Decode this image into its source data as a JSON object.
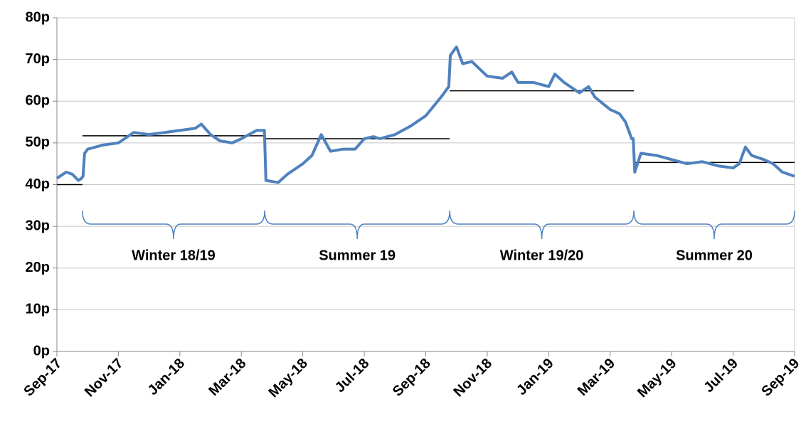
{
  "chart_data": {
    "type": "line",
    "xlim": [
      0,
      24
    ],
    "xticks": [
      {
        "value": 0,
        "label": "Sep-17"
      },
      {
        "value": 2,
        "label": "Nov-17"
      },
      {
        "value": 4,
        "label": "Jan-18"
      },
      {
        "value": 6,
        "label": "Mar-18"
      },
      {
        "value": 8,
        "label": "May-18"
      },
      {
        "value": 10,
        "label": "Jul-18"
      },
      {
        "value": 12,
        "label": "Sep-18"
      },
      {
        "value": 14,
        "label": "Nov-18"
      },
      {
        "value": 16,
        "label": "Jan-19"
      },
      {
        "value": 18,
        "label": "Mar-19"
      },
      {
        "value": 20,
        "label": "May-19"
      },
      {
        "value": 22,
        "label": "Jul-19"
      },
      {
        "value": 24,
        "label": "Sep-19"
      }
    ],
    "ylim": [
      0,
      80
    ],
    "yticks": [
      {
        "value": 0,
        "label": "0p"
      },
      {
        "value": 10,
        "label": "10p"
      },
      {
        "value": 20,
        "label": "20p"
      },
      {
        "value": 30,
        "label": "30p"
      },
      {
        "value": 40,
        "label": "40p"
      },
      {
        "value": 50,
        "label": "50p"
      },
      {
        "value": 60,
        "label": "60p"
      },
      {
        "value": 70,
        "label": "70p"
      },
      {
        "value": 80,
        "label": "80p"
      }
    ],
    "grid": true,
    "series": [
      {
        "color": "#4f81bd",
        "x": [
          0,
          0.3,
          0.5,
          0.7,
          0.8,
          0.85,
          0.9,
          1.0,
          1.5,
          2.0,
          2.5,
          3.0,
          3.5,
          4.0,
          4.5,
          4.7,
          5.0,
          5.3,
          5.7,
          6.0,
          6.5,
          6.75,
          6.8,
          7.2,
          7.5,
          8.0,
          8.3,
          8.6,
          8.9,
          9.3,
          9.7,
          10.0,
          10.3,
          10.5,
          11.0,
          11.5,
          12.0,
          12.5,
          12.75,
          12.8,
          13.0,
          13.2,
          13.5,
          14.0,
          14.5,
          14.8,
          15.0,
          15.5,
          16.0,
          16.2,
          16.5,
          17.0,
          17.3,
          17.5,
          18.0,
          18.3,
          18.5,
          18.7,
          18.75,
          18.8,
          19.0,
          19.5,
          20.0,
          20.5,
          21.0,
          21.5,
          22.0,
          22.2,
          22.4,
          22.6,
          23.0,
          23.3,
          23.6,
          24.0
        ],
        "values": [
          41.5,
          43,
          42.5,
          41,
          41.5,
          42,
          47.5,
          48.5,
          49.5,
          50,
          52.5,
          52,
          52.5,
          53,
          53.5,
          54.5,
          52,
          50.5,
          50,
          51,
          53,
          53,
          41,
          40.5,
          42.5,
          45,
          47,
          52,
          48,
          48.5,
          48.5,
          51,
          51.5,
          51,
          52,
          54,
          56.5,
          61,
          63.5,
          71,
          73,
          69,
          69.5,
          66,
          65.5,
          67,
          64.5,
          64.5,
          63.5,
          66.5,
          64.5,
          62,
          63.5,
          61,
          58,
          57,
          55,
          51,
          51,
          43,
          47.5,
          47,
          46,
          45,
          45.5,
          44.5,
          44,
          45,
          49,
          47,
          46,
          45,
          43,
          42
        ]
      }
    ],
    "averages": [
      {
        "start": 0,
        "end": 0.83,
        "value": 40
      },
      {
        "start": 0.83,
        "end": 6.76,
        "value": 51.7
      },
      {
        "start": 6.76,
        "end": 12.78,
        "value": 51
      },
      {
        "start": 12.78,
        "end": 18.77,
        "value": 62.5
      },
      {
        "start": 18.77,
        "end": 24,
        "value": 45.3
      }
    ],
    "annotations": [
      {
        "text": "Winter 18/19",
        "start": 0.83,
        "end": 6.76
      },
      {
        "text": "Summer 19",
        "start": 6.76,
        "end": 12.78
      },
      {
        "text": "Winter 19/20",
        "start": 12.78,
        "end": 18.77
      },
      {
        "text": "Summer 20",
        "start": 18.77,
        "end": 24
      }
    ]
  }
}
